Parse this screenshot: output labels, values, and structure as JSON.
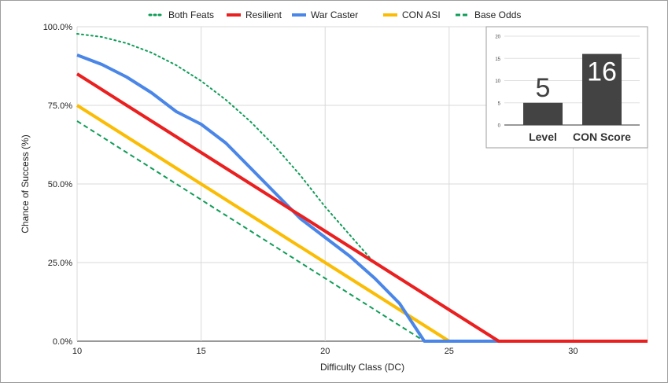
{
  "chart_data": [
    {
      "type": "line",
      "title": "",
      "xlabel": "Difficulty Class (DC)",
      "ylabel": "Chance of Success (%)",
      "xlim": [
        10,
        33
      ],
      "ylim": [
        0,
        100
      ],
      "x_ticks": [
        10,
        15,
        20,
        25,
        30
      ],
      "x_tick_labels": [
        "10",
        "15",
        "20",
        "25",
        "30"
      ],
      "y_ticks": [
        0,
        25,
        50,
        75,
        100
      ],
      "y_tick_labels": [
        "0.0%",
        "25.0%",
        "50.0%",
        "75.0%",
        "100.0%"
      ],
      "legend_position": "top",
      "grid": true,
      "series": [
        {
          "name": "Both Feats",
          "color": "#0f9d58",
          "style": "dotted",
          "x": [
            10,
            11,
            12,
            13,
            14,
            15,
            16,
            17,
            18,
            19,
            20,
            21,
            22,
            23,
            24,
            25,
            26,
            27,
            28,
            29,
            30,
            31,
            32,
            33
          ],
          "values": [
            97.75,
            96.75,
            94.75,
            91.75,
            87.75,
            82.75,
            76.75,
            69.75,
            61.75,
            52.75,
            42.75,
            33.75,
            24.75,
            19.75,
            14.75,
            9.75,
            4.75,
            0,
            0,
            0,
            0,
            0,
            0,
            0
          ]
        },
        {
          "name": "Resilient",
          "color": "#ea1f1f",
          "style": "solid",
          "x": [
            10,
            11,
            12,
            13,
            14,
            15,
            16,
            17,
            18,
            19,
            20,
            21,
            22,
            23,
            24,
            25,
            26,
            27,
            28,
            29,
            30,
            31,
            32,
            33
          ],
          "values": [
            85,
            80,
            75,
            70,
            65,
            60,
            55,
            50,
            45,
            40,
            35,
            30,
            25,
            20,
            15,
            10,
            5,
            0,
            0,
            0,
            0,
            0,
            0,
            0
          ]
        },
        {
          "name": "War Caster",
          "color": "#4a86e8",
          "style": "solid",
          "x": [
            10,
            11,
            12,
            13,
            14,
            15,
            16,
            17,
            18,
            19,
            20,
            21,
            22,
            23,
            24,
            25,
            26,
            27,
            28,
            29,
            30,
            31,
            32,
            33
          ],
          "values": [
            91,
            88,
            84,
            79,
            73,
            69,
            63,
            55,
            47,
            39,
            33,
            27,
            20,
            12,
            0,
            0,
            0,
            0,
            0,
            0,
            0,
            0,
            0,
            0
          ]
        },
        {
          "name": "CON ASI",
          "color": "#fbbc04",
          "style": "solid",
          "x": [
            10,
            11,
            12,
            13,
            14,
            15,
            16,
            17,
            18,
            19,
            20,
            21,
            22,
            23,
            24,
            25,
            26,
            27,
            28,
            29,
            30,
            31,
            32,
            33
          ],
          "values": [
            75,
            70,
            65,
            60,
            55,
            50,
            45,
            40,
            35,
            30,
            25,
            20,
            15,
            10,
            5,
            0,
            0,
            0,
            0,
            0,
            0,
            0,
            0,
            0
          ]
        },
        {
          "name": "Base Odds",
          "color": "#0f9d58",
          "style": "dashed",
          "x": [
            10,
            11,
            12,
            13,
            14,
            15,
            16,
            17,
            18,
            19,
            20,
            21,
            22,
            23,
            24,
            25,
            26,
            27,
            28,
            29,
            30,
            31,
            32,
            33
          ],
          "values": [
            70,
            65,
            60,
            55,
            50,
            45,
            40,
            35,
            30,
            25,
            20,
            15,
            10,
            5,
            0,
            0,
            0,
            0,
            0,
            0,
            0,
            0,
            0,
            0
          ]
        }
      ]
    },
    {
      "type": "bar",
      "title": "",
      "categories": [
        "Level",
        "CON Score"
      ],
      "values": [
        5,
        16
      ],
      "value_labels": [
        "5",
        "16"
      ],
      "ylim": [
        0,
        20
      ],
      "y_ticks": [
        0,
        5,
        10,
        15,
        20
      ],
      "y_tick_labels": [
        "0",
        "5",
        "10",
        "15",
        "20"
      ],
      "bar_color": "#434343",
      "grid": true
    }
  ]
}
